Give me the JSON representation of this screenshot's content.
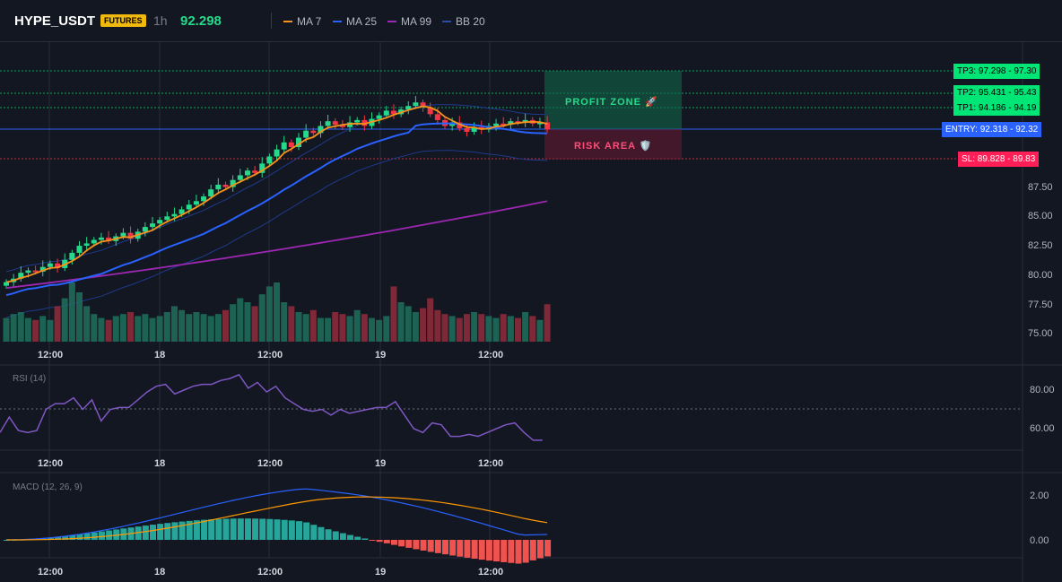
{
  "header": {
    "symbol": "HYPE_USDT",
    "badge": "FUTURES",
    "interval": "1h",
    "price": "92.298",
    "legend": [
      {
        "label": "MA 7",
        "color": "#f7931a"
      },
      {
        "label": "MA 25",
        "color": "#2962ff"
      },
      {
        "label": "MA 99",
        "color": "#9c27b0"
      },
      {
        "label": "BB 20",
        "color": "#1e3a8a"
      }
    ]
  },
  "price_axis": [
    "87.50",
    "85.00",
    "82.50",
    "80.00",
    "77.50",
    "75.00"
  ],
  "time_axis": [
    "12:00",
    "18",
    "12:00",
    "19",
    "12:00"
  ],
  "rsi": {
    "title": "RSI (14)",
    "ticks": [
      "80.00",
      "60.00"
    ]
  },
  "macd": {
    "title": "MACD (12, 26, 9)",
    "ticks": [
      "2.00",
      "0.00"
    ]
  },
  "levels": {
    "tp3": "TP3: 97.298 - 97.30",
    "tp2": "TP2: 95.431 - 95.43",
    "tp1": "TP1: 94.186 - 94.19",
    "entry": "ENTRY: 92.318 - 92.32",
    "sl": "SL: 89.828 - 89.83"
  },
  "zones": {
    "profit": "PROFIT ZONE 🚀",
    "risk": "RISK AREA 🛡️"
  },
  "colors": {
    "up": "#26d98a",
    "down": "#f23645",
    "tp": "#00e676",
    "entry": "#2962ff",
    "sl": "#ff1e56"
  },
  "chart_data": {
    "type": "candlestick",
    "close_series": [
      79.3,
      79.6,
      80.1,
      80.3,
      80.2,
      80.6,
      80.9,
      80.5,
      81.2,
      81.8,
      82.4,
      82.6,
      82.9,
      83.1,
      82.8,
      83.2,
      83.5,
      83.0,
      83.6,
      84.0,
      84.3,
      84.6,
      84.9,
      85.1,
      85.5,
      85.9,
      86.2,
      86.6,
      87.2,
      87.6,
      87.4,
      88.0,
      88.4,
      88.8,
      88.6,
      89.4,
      90.0,
      90.6,
      91.2,
      90.8,
      91.6,
      92.2,
      92.0,
      92.6,
      93.0,
      92.7,
      92.5,
      92.9,
      93.1,
      92.6,
      93.2,
      93.5,
      93.9,
      93.6,
      94.0,
      94.3,
      94.6,
      94.2,
      93.6,
      93.1,
      92.6,
      92.9,
      92.4,
      92.1,
      92.5,
      92.3,
      92.6,
      92.8,
      92.7,
      93.0,
      92.9,
      93.1,
      92.8,
      92.9,
      92.3
    ],
    "volume_series": [
      12,
      14,
      15,
      12,
      11,
      13,
      11,
      18,
      22,
      30,
      25,
      18,
      14,
      12,
      11,
      13,
      14,
      15,
      13,
      14,
      12,
      13,
      15,
      18,
      16,
      14,
      15,
      14,
      13,
      14,
      16,
      19,
      22,
      20,
      18,
      24,
      28,
      30,
      20,
      18,
      15,
      14,
      16,
      12,
      12,
      15,
      14,
      13,
      16,
      14,
      12,
      11,
      13,
      28,
      20,
      18,
      15,
      17,
      22,
      16,
      14,
      13,
      12,
      14,
      15,
      14,
      13,
      12,
      14,
      13,
      12,
      15,
      13,
      11,
      19
    ]
  }
}
